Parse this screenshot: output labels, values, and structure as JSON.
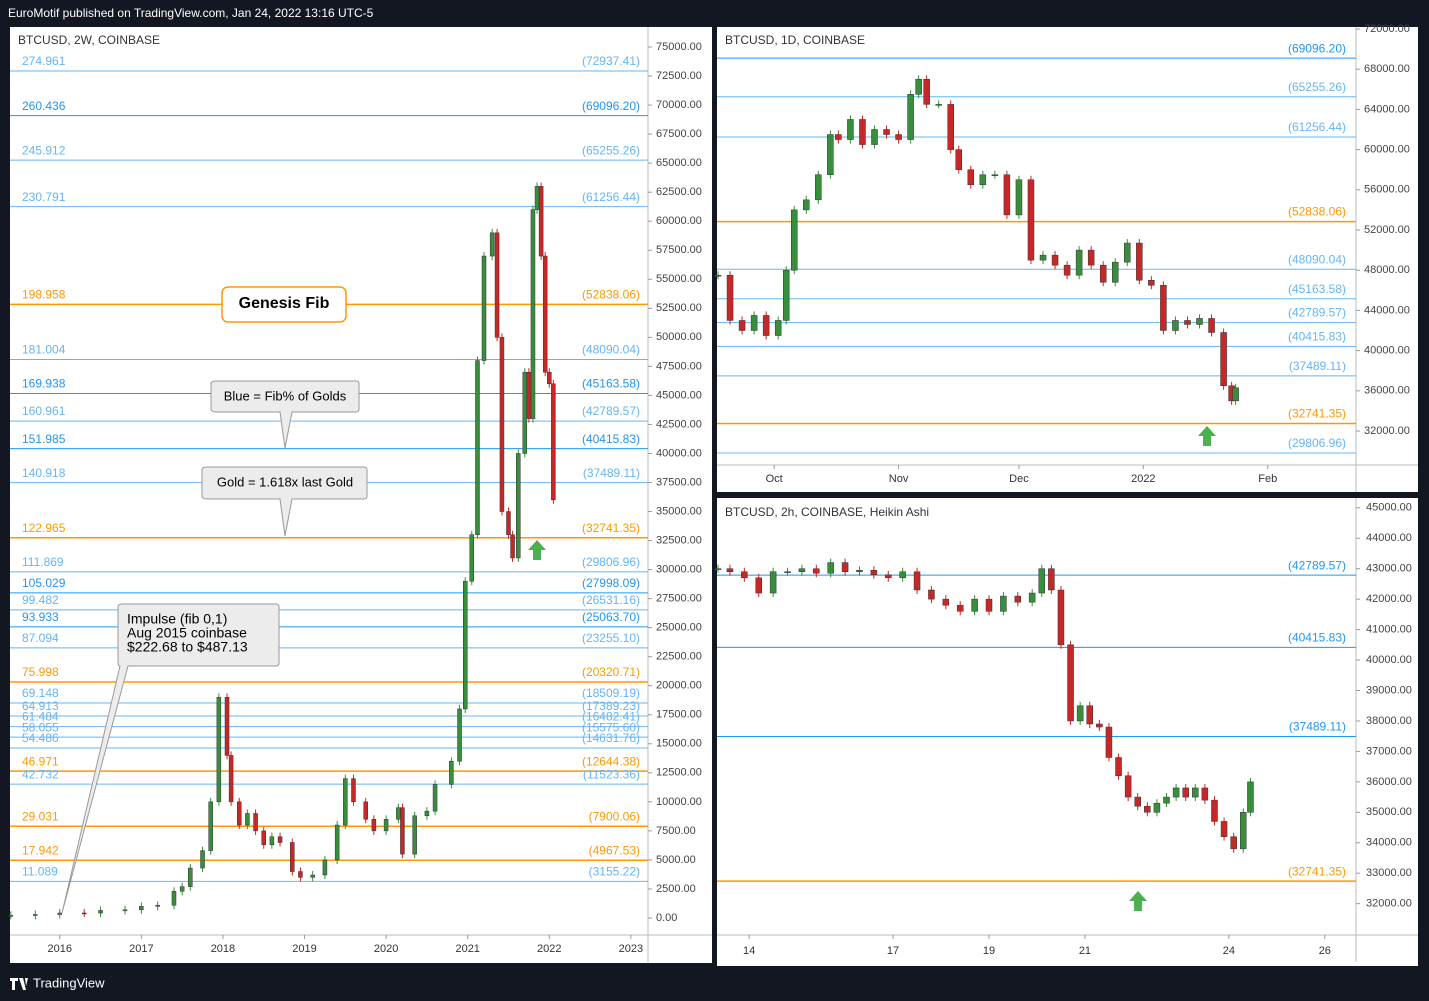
{
  "header": {
    "publisher": "EuroMotif published on TradingView.com, Jan 24, 2022 13:16 UTC-5"
  },
  "footer": {
    "brand": "TradingView"
  },
  "chart_data": [
    {
      "type": "candlestick",
      "title": "BTCUSD, 2W, COINBASE",
      "up_color": "#388e3c",
      "down_color": "#c62828",
      "annotations": {
        "genesis": "Genesis Fib",
        "blue": "Blue = Fib% of Golds",
        "gold": "Gold = 1.618x last Gold",
        "impulse": [
          "Impulse (fib 0,1)",
          "Aug 2015 coinbase",
          "$222.68 to $487.13"
        ]
      },
      "xlim": [
        2015.39,
        2023.21
      ],
      "xticks": [
        2016,
        2017,
        2018,
        2019,
        2020,
        2021,
        2022,
        2023
      ],
      "ylim": [
        -1466,
        76724
      ],
      "yticks": [
        {
          "value": 0,
          "label": "0.00"
        },
        {
          "value": 2500,
          "label": "2500.00"
        },
        {
          "value": 5000,
          "label": "5000.00"
        },
        {
          "value": 7500,
          "label": "7500.00"
        },
        {
          "value": 10000,
          "label": "10000.00"
        },
        {
          "value": 12500,
          "label": "12500.00"
        },
        {
          "value": 15000,
          "label": "15000.00"
        },
        {
          "value": 17500,
          "label": "17500.00"
        },
        {
          "value": 20000,
          "label": "20000.00"
        },
        {
          "value": 22500,
          "label": "22500.00"
        },
        {
          "value": 25000,
          "label": "25000.00"
        },
        {
          "value": 27500,
          "label": "27500.00"
        },
        {
          "value": 30000,
          "label": "30000.00"
        },
        {
          "value": 32500,
          "label": "32500.00"
        },
        {
          "value": 35000,
          "label": "35000.00"
        },
        {
          "value": 37500,
          "label": "37500.00"
        },
        {
          "value": 40000,
          "label": "40000.00"
        },
        {
          "value": 42500,
          "label": "42500.00"
        },
        {
          "value": 45000,
          "label": "45000.00"
        },
        {
          "value": 47500,
          "label": "47500.00"
        },
        {
          "value": 50000,
          "label": "50000.00"
        },
        {
          "value": 52500,
          "label": "52500.00"
        },
        {
          "value": 55000,
          "label": "55000.00"
        },
        {
          "value": 57500,
          "label": "57500.00"
        },
        {
          "value": 60000,
          "label": "60000.00"
        },
        {
          "value": 62500,
          "label": "62500.00"
        },
        {
          "value": 65000,
          "label": "65000.00"
        },
        {
          "value": 67500,
          "label": "67500.00"
        },
        {
          "value": 70000,
          "label": "70000.00"
        },
        {
          "value": 72500,
          "label": "72500.00"
        },
        {
          "value": 75000,
          "label": "75000.00"
        }
      ],
      "levels": [
        {
          "ratio": 274.961,
          "price": {
            "value": 72937.41,
            "label": "(72937.41)"
          },
          "color": "#64b5f6"
        },
        {
          "ratio": 260.436,
          "price": {
            "value": 69096.2,
            "label": "(69096.20)"
          },
          "color": "#2196f3"
        },
        {
          "ratio": 245.912,
          "price": {
            "value": 65255.26,
            "label": "(65255.26)"
          },
          "color": "#64b5f6"
        },
        {
          "ratio": 230.791,
          "price": {
            "value": 61256.44,
            "label": "(61256.44)"
          },
          "color": "#64b5f6"
        },
        {
          "ratio": 198.958,
          "price": {
            "value": 52838.06,
            "label": "(52838.06)"
          },
          "color": "#ff9800"
        },
        {
          "ratio": 181.004,
          "price": {
            "value": 48090.04,
            "label": "(48090.04)"
          },
          "color": "#64b5f6"
        },
        {
          "ratio": 169.938,
          "price": {
            "value": 45163.58,
            "label": "(45163.58)"
          },
          "color": "#2196f3"
        },
        {
          "ratio": 160.961,
          "price": {
            "value": 42789.57,
            "label": "(42789.57)"
          },
          "color": "#64b5f6"
        },
        {
          "ratio": 151.985,
          "price": {
            "value": 40415.83,
            "label": "(40415.83)"
          },
          "color": "#2196f3"
        },
        {
          "ratio": 140.918,
          "price": {
            "value": 37489.11,
            "label": "(37489.11)"
          },
          "color": "#64b5f6"
        },
        {
          "ratio": 122.965,
          "price": {
            "value": 32741.35,
            "label": "(32741.35)"
          },
          "color": "#ff9800"
        },
        {
          "ratio": 111.869,
          "price": {
            "value": 29806.96,
            "label": "(29806.96)"
          },
          "color": "#64b5f6"
        },
        {
          "ratio": 105.029,
          "price": {
            "value": 27998.09,
            "label": "(27998.09)"
          },
          "color": "#2196f3"
        },
        {
          "ratio": 99.482,
          "price": {
            "value": 26531.16,
            "label": "(26531.16)"
          },
          "color": "#64b5f6"
        },
        {
          "ratio": 93.933,
          "price": {
            "value": 25063.7,
            "label": "(25063.70)"
          },
          "color": "#2196f3"
        },
        {
          "ratio": 87.094,
          "price": {
            "value": 23255.1,
            "label": "(23255.10)"
          },
          "color": "#64b5f6"
        },
        {
          "ratio": 75.998,
          "price": {
            "value": 20320.71,
            "label": "(20320.71)"
          },
          "color": "#ff9800"
        },
        {
          "ratio": 69.148,
          "price": {
            "value": 18509.19,
            "label": "(18509.19)"
          },
          "color": "#64b5f6"
        },
        {
          "ratio": 64.913,
          "price": {
            "value": 17389.23,
            "label": "(17389.23)"
          },
          "color": "#64b5f6"
        },
        {
          "ratio": 61.484,
          "price": {
            "value": 16482.41,
            "label": "(16482.41)"
          },
          "color": "#64b5f6"
        },
        {
          "ratio": 58.055,
          "price": {
            "value": 15575.6,
            "label": "(15575.60)"
          },
          "color": "#64b5f6"
        },
        {
          "ratio": 54.486,
          "price": {
            "value": 14631.76,
            "label": "(14631.76)"
          },
          "color": "#64b5f6"
        },
        {
          "ratio": 46.971,
          "price": {
            "value": 12644.38,
            "label": "(12644.38)"
          },
          "color": "#ff9800"
        },
        {
          "ratio": 42.732,
          "price": {
            "value": 11523.36,
            "label": "(11523.36)"
          },
          "color": "#64b5f6"
        },
        {
          "ratio": 29.031,
          "price": {
            "value": 7900.06,
            "label": "(7900.06)"
          },
          "color": "#ff9800"
        },
        {
          "ratio": 17.942,
          "price": {
            "value": 4967.53,
            "label": "(4967.53)"
          },
          "color": "#ff9800"
        },
        {
          "ratio": 11.089,
          "price": {
            "value": 3155.22,
            "label": "(3155.22)"
          },
          "color": "#64b5f6"
        }
      ],
      "x": [
        2015.4,
        2015.7,
        2016.0,
        2016.3,
        2016.5,
        2016.8,
        2017.0,
        2017.2,
        2017.4,
        2017.5,
        2017.6,
        2017.75,
        2017.85,
        2017.95,
        2018.05,
        2018.1,
        2018.2,
        2018.3,
        2018.4,
        2018.5,
        2018.6,
        2018.7,
        2018.85,
        2018.95,
        2019.1,
        2019.25,
        2019.4,
        2019.5,
        2019.6,
        2019.75,
        2019.85,
        2020.0,
        2020.15,
        2020.2,
        2020.35,
        2020.5,
        2020.6,
        2020.8,
        2020.9,
        2020.97,
        2021.05,
        2021.12,
        2021.2,
        2021.3,
        2021.36,
        2021.42,
        2021.5,
        2021.55,
        2021.62,
        2021.7,
        2021.75,
        2021.8,
        2021.85,
        2021.9,
        2021.95,
        2022.0,
        2022.05
      ],
      "values": [
        230,
        300,
        430,
        420,
        650,
        700,
        1000,
        1100,
        2300,
        2700,
        4300,
        5800,
        10000,
        19000,
        14000,
        10000,
        8000,
        9000,
        7500,
        6300,
        7000,
        6500,
        4000,
        3500,
        3700,
        5000,
        8000,
        12000,
        10000,
        8500,
        7500,
        8500,
        9500,
        5500,
        8800,
        9200,
        11500,
        13500,
        18000,
        29000,
        33000,
        48000,
        57000,
        59000,
        50000,
        35000,
        33000,
        31000,
        40000,
        47000,
        43000,
        61000,
        63000,
        57000,
        47000,
        46000,
        36000
      ]
    },
    {
      "type": "candlestick",
      "title": "BTCUSD, 1D, COINBASE",
      "up_color": "#388e3c",
      "down_color": "#c62828",
      "xlim": [
        -0.25,
        159
      ],
      "xticks": [
        {
          "value": 14,
          "label": "Oct"
        },
        {
          "value": 45,
          "label": "Nov"
        },
        {
          "value": 75,
          "label": "Dec"
        },
        {
          "value": 106,
          "label": "2022"
        },
        {
          "value": 137,
          "label": "Feb"
        }
      ],
      "ylim": [
        28617,
        72199
      ],
      "yticks": [
        {
          "value": 32000,
          "label": "32000.00"
        },
        {
          "value": 36000,
          "label": "36000.00"
        },
        {
          "value": 40000,
          "label": "40000.00"
        },
        {
          "value": 44000,
          "label": "44000.00"
        },
        {
          "value": 48000,
          "label": "48000.00"
        },
        {
          "value": 52000,
          "label": "52000.00"
        },
        {
          "value": 56000,
          "label": "56000.00"
        },
        {
          "value": 60000,
          "label": "60000.00"
        },
        {
          "value": 64000,
          "label": "64000.00"
        },
        {
          "value": 68000,
          "label": "68000.00"
        },
        {
          "value": 72000,
          "label": "72000.00"
        }
      ],
      "levels": [
        {
          "price": {
            "value": 69096.2,
            "label": "(69096.20)"
          },
          "color": "#2196f3"
        },
        {
          "price": {
            "value": 65255.26,
            "label": "(65255.26)"
          },
          "color": "#64b5f6"
        },
        {
          "price": {
            "value": 61256.44,
            "label": "(61256.44)"
          },
          "color": "#64b5f6"
        },
        {
          "price": {
            "value": 52838.06,
            "label": "(52838.06)"
          },
          "color": "#ff9800"
        },
        {
          "price": {
            "value": 48090.04,
            "label": "(48090.04)"
          },
          "color": "#64b5f6"
        },
        {
          "price": {
            "value": 45163.58,
            "label": "(45163.58)"
          },
          "color": "#64b5f6"
        },
        {
          "price": {
            "value": 42789.57,
            "label": "(42789.57)"
          },
          "color": "#64b5f6"
        },
        {
          "price": {
            "value": 40415.83,
            "label": "(40415.83)"
          },
          "color": "#64b5f6"
        },
        {
          "price": {
            "value": 37489.11,
            "label": "(37489.11)"
          },
          "color": "#64b5f6"
        },
        {
          "price": {
            "value": 32741.35,
            "label": "(32741.35)"
          },
          "color": "#ff9800"
        },
        {
          "price": {
            "value": 29806.96,
            "label": "(29806.96)"
          },
          "color": "#64b5f6"
        }
      ],
      "x": [
        0,
        3,
        6,
        9,
        12,
        15,
        17,
        19,
        22,
        25,
        28,
        30,
        33,
        36,
        39,
        42,
        45,
        48,
        50,
        52,
        55,
        58,
        60,
        63,
        66,
        69,
        72,
        75,
        78,
        81,
        84,
        87,
        90,
        93,
        96,
        99,
        102,
        105,
        108,
        111,
        114,
        117,
        120,
        123,
        126,
        128,
        129
      ],
      "values": [
        47500,
        43000,
        42000,
        43500,
        41500,
        43000,
        48000,
        54000,
        55000,
        57500,
        61500,
        61000,
        63000,
        60500,
        62000,
        61500,
        61000,
        65500,
        67000,
        64500,
        64500,
        60000,
        58000,
        56500,
        57500,
        57500,
        53500,
        57000,
        49000,
        49500,
        48500,
        47500,
        50000,
        48500,
        46800,
        48800,
        50700,
        47000,
        46500,
        42000,
        43000,
        42600,
        43200,
        41800,
        36500,
        35000,
        36300
      ]
    },
    {
      "type": "candlestick",
      "title": "BTCUSD, 2h, COINBASE, Heikin Ashi",
      "up_color": "#388e3c",
      "down_color": "#c62828",
      "xlim": [
        13.33,
        26.65
      ],
      "xticks": [
        14,
        17,
        19,
        21,
        24,
        26
      ],
      "ylim": [
        30971,
        45321
      ],
      "yticks": [
        {
          "value": 32000,
          "label": "32000.00"
        },
        {
          "value": 33000,
          "label": "33000.00"
        },
        {
          "value": 34000,
          "label": "34000.00"
        },
        {
          "value": 35000,
          "label": "35000.00"
        },
        {
          "value": 36000,
          "label": "36000.00"
        },
        {
          "value": 37000,
          "label": "37000.00"
        },
        {
          "value": 38000,
          "label": "38000.00"
        },
        {
          "value": 39000,
          "label": "39000.00"
        },
        {
          "value": 40000,
          "label": "40000.00"
        },
        {
          "value": 41000,
          "label": "41000.00"
        },
        {
          "value": 42000,
          "label": "42000.00"
        },
        {
          "value": 43000,
          "label": "43000.00"
        },
        {
          "value": 44000,
          "label": "44000.00"
        },
        {
          "value": 45000,
          "label": "45000.00"
        }
      ],
      "levels": [
        {
          "price": {
            "value": 42789.57,
            "label": "(42789.57)"
          },
          "color": "#2196f3"
        },
        {
          "price": {
            "value": 40415.83,
            "label": "(40415.83)"
          },
          "color": "#2196f3"
        },
        {
          "price": {
            "value": 37489.11,
            "label": "(37489.11)"
          },
          "color": "#2196f3"
        },
        {
          "price": {
            "value": 32741.35,
            "label": "(32741.35)"
          },
          "color": "#ff9800"
        }
      ],
      "x": [
        13.35,
        13.6,
        13.9,
        14.2,
        14.5,
        14.8,
        15.1,
        15.4,
        15.7,
        16.0,
        16.3,
        16.6,
        16.9,
        17.2,
        17.5,
        17.8,
        18.1,
        18.4,
        18.7,
        19.0,
        19.3,
        19.6,
        19.9,
        20.1,
        20.3,
        20.5,
        20.7,
        20.9,
        21.1,
        21.3,
        21.5,
        21.7,
        21.9,
        22.1,
        22.3,
        22.5,
        22.7,
        22.9,
        23.1,
        23.3,
        23.5,
        23.7,
        23.9,
        24.1,
        24.3,
        24.45
      ],
      "values": [
        43000,
        42900,
        42700,
        42200,
        42900,
        42900,
        43000,
        42850,
        43200,
        42900,
        42950,
        42800,
        42700,
        42900,
        42300,
        42000,
        41800,
        41600,
        42000,
        41600,
        42100,
        41900,
        42200,
        43000,
        42300,
        40500,
        38000,
        38500,
        37900,
        37800,
        36800,
        36200,
        35500,
        35200,
        35000,
        35300,
        35500,
        35800,
        35500,
        35800,
        35400,
        34700,
        34200,
        33800,
        35000,
        36000
      ]
    }
  ]
}
